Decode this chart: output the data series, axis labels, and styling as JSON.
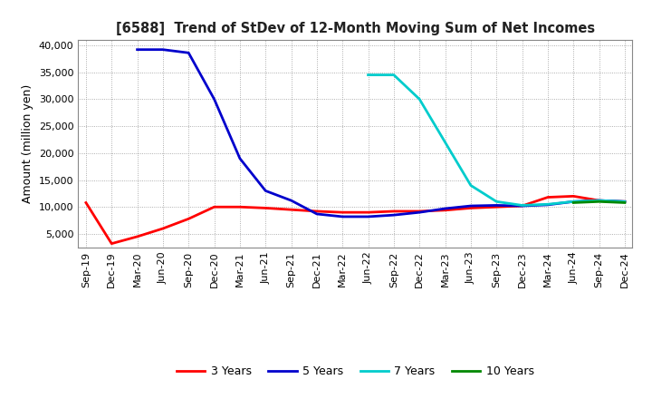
{
  "title": "[6588]  Trend of StDev of 12-Month Moving Sum of Net Incomes",
  "ylabel": "Amount (million yen)",
  "background_color": "#ffffff",
  "plot_bg_color": "#ffffff",
  "grid_color": "#999999",
  "ylim": [
    2500,
    41000
  ],
  "yticks": [
    5000,
    10000,
    15000,
    20000,
    25000,
    30000,
    35000,
    40000
  ],
  "x_labels": [
    "Sep-19",
    "Dec-19",
    "Mar-20",
    "Jun-20",
    "Sep-20",
    "Dec-20",
    "Mar-21",
    "Jun-21",
    "Sep-21",
    "Dec-21",
    "Mar-22",
    "Jun-22",
    "Sep-22",
    "Dec-22",
    "Mar-23",
    "Jun-23",
    "Sep-23",
    "Dec-23",
    "Mar-24",
    "Jun-24",
    "Sep-24",
    "Dec-24"
  ],
  "series": {
    "3 Years": {
      "color": "#ff0000",
      "linewidth": 2.0,
      "values": [
        10800,
        3200,
        4500,
        6000,
        7800,
        10000,
        10000,
        9800,
        9500,
        9200,
        9000,
        9000,
        9200,
        9200,
        9400,
        9800,
        10000,
        10200,
        11800,
        12000,
        11200,
        11000
      ]
    },
    "5 Years": {
      "color": "#0000cc",
      "linewidth": 2.0,
      "values": [
        null,
        null,
        39200,
        39200,
        38600,
        30000,
        19000,
        13000,
        11200,
        8700,
        8200,
        8200,
        8500,
        9000,
        9700,
        10200,
        10300,
        10200,
        10400,
        11000,
        11200,
        11000
      ]
    },
    "7 Years": {
      "color": "#00cccc",
      "linewidth": 2.0,
      "values": [
        null,
        null,
        null,
        null,
        null,
        null,
        null,
        null,
        null,
        null,
        null,
        34500,
        34500,
        30000,
        22000,
        14000,
        11000,
        10300,
        10500,
        11000,
        11200,
        11000
      ]
    },
    "10 Years": {
      "color": "#008800",
      "linewidth": 2.0,
      "values": [
        null,
        null,
        null,
        null,
        null,
        null,
        null,
        null,
        null,
        null,
        null,
        null,
        null,
        null,
        null,
        null,
        null,
        null,
        null,
        10800,
        11000,
        10800
      ]
    }
  },
  "legend_order": [
    "3 Years",
    "5 Years",
    "7 Years",
    "10 Years"
  ]
}
